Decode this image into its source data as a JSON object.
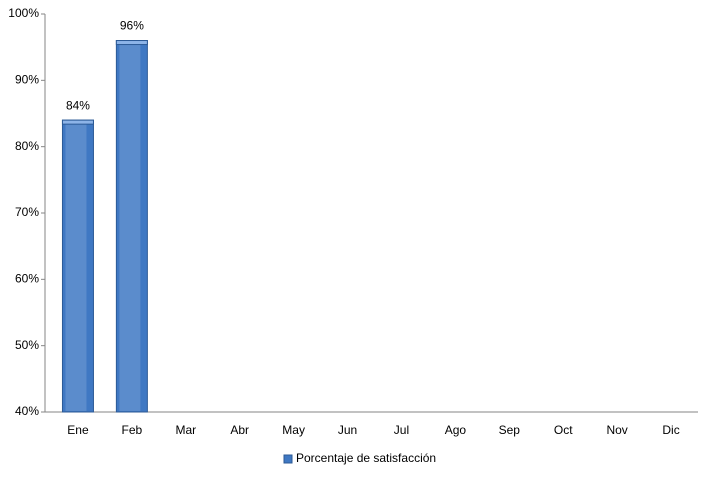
{
  "chart_data": {
    "type": "bar",
    "categories": [
      "Ene",
      "Feb",
      "Mar",
      "Abr",
      "May",
      "Jun",
      "Jul",
      "Ago",
      "Sep",
      "Oct",
      "Nov",
      "Dic"
    ],
    "series": [
      {
        "name": "Porcentaje de satisfacción",
        "color": "#3f78c3",
        "values": [
          84,
          96,
          null,
          null,
          null,
          null,
          null,
          null,
          null,
          null,
          null,
          null
        ],
        "value_labels": [
          "84%",
          "96%",
          null,
          null,
          null,
          null,
          null,
          null,
          null,
          null,
          null,
          null
        ]
      }
    ],
    "ylim": [
      40,
      100
    ],
    "yticks": [
      {
        "value": 40,
        "label": "40%"
      },
      {
        "value": 50,
        "label": "50%"
      },
      {
        "value": 60,
        "label": "60%"
      },
      {
        "value": 70,
        "label": "70%"
      },
      {
        "value": 80,
        "label": "80%"
      },
      {
        "value": 90,
        "label": "90%"
      },
      {
        "value": 100,
        "label": "100%"
      }
    ],
    "grid": false,
    "legend": "bottom"
  }
}
